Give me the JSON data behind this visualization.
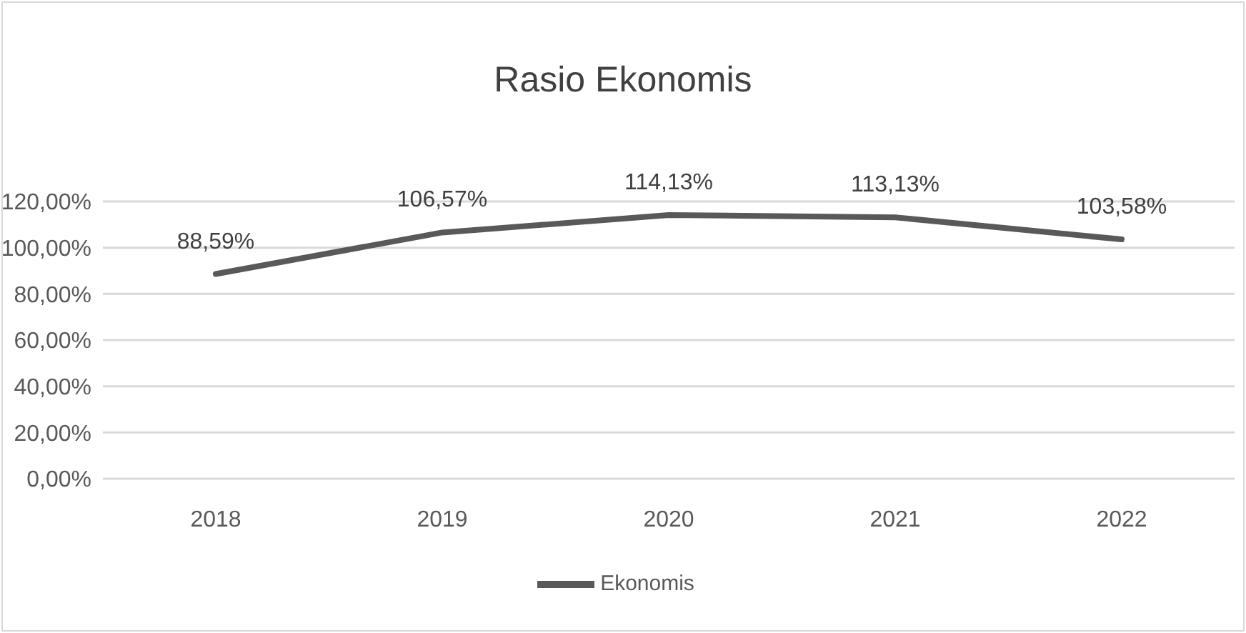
{
  "chart_data": {
    "type": "line",
    "title": "Rasio Ekonomis",
    "categories": [
      "2018",
      "2019",
      "2020",
      "2021",
      "2022"
    ],
    "series": [
      {
        "name": "Ekonomis",
        "color": "#595959",
        "values": [
          88.59,
          106.57,
          114.13,
          113.13,
          103.58
        ],
        "value_labels": [
          "88,59%",
          "106,57%",
          "114,13%",
          "113,13%",
          "103,58%"
        ]
      }
    ],
    "ylim": [
      0,
      120
    ],
    "yticks": [
      {
        "value": 0,
        "label": "0,00%"
      },
      {
        "value": 20,
        "label": "20,00%"
      },
      {
        "value": 40,
        "label": "40,00%"
      },
      {
        "value": 60,
        "label": "60,00%"
      },
      {
        "value": 80,
        "label": "80,00%"
      },
      {
        "value": 100,
        "label": "100,00%"
      },
      {
        "value": 120,
        "label": "120,00%"
      }
    ],
    "grid": "y",
    "legend": "bottom",
    "marker": "none",
    "line_style": "solid"
  }
}
